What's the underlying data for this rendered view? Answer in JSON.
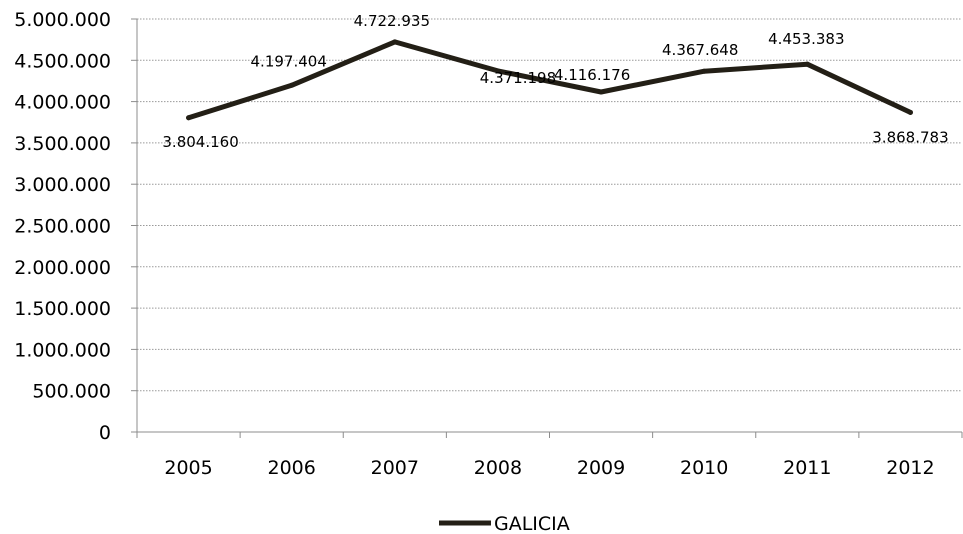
{
  "chart_data": {
    "type": "line",
    "categories": [
      "2005",
      "2006",
      "2007",
      "2008",
      "2009",
      "2010",
      "2011",
      "2012"
    ],
    "series": [
      {
        "name": "GALICIA",
        "values": [
          3804160,
          4197404,
          4722935,
          4371198,
          4116176,
          4367648,
          4453383,
          3868783
        ],
        "labels": [
          "3.804.160",
          "4.197.404",
          "4.722.935",
          "4.371.198",
          "4.116.176",
          "4.367.648",
          "4.453.383",
          "3.868.783"
        ]
      }
    ],
    "y_ticks": [
      "0",
      "500.000",
      "1.000.000",
      "1.500.000",
      "2.000.000",
      "2.500.000",
      "3.000.000",
      "3.500.000",
      "4.000.000",
      "4.500.000",
      "5.000.000"
    ],
    "ylim": [
      0,
      5000000
    ],
    "ytick_step": 500000,
    "grid": true,
    "legend_position": "bottom",
    "title": "",
    "xlabel": "",
    "ylabel": "",
    "colors": {
      "line": "#231f16",
      "grid": "#9a9a9a",
      "axis": "#8c8c8c",
      "text": "#000000"
    }
  }
}
